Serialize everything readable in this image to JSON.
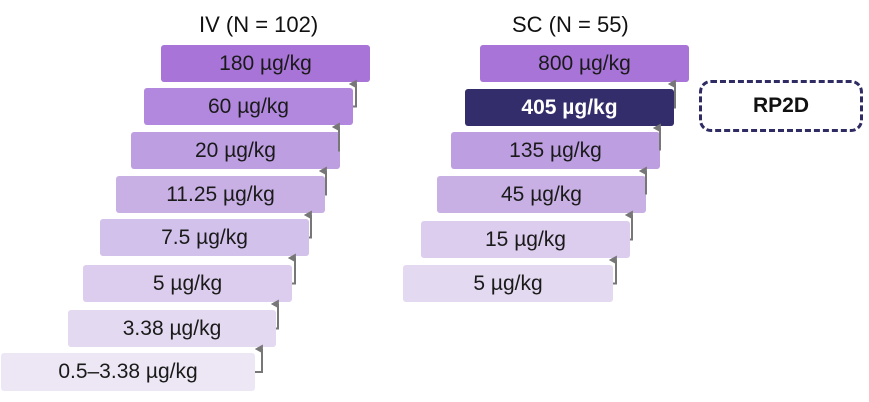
{
  "colors": {
    "shade_1": "#ede7f5",
    "shade_2": "#e3d9f0",
    "shade_3": "#dccdef",
    "shade_4": "#d2c1ea",
    "shade_5": "#c8b0e5",
    "shade_6": "#bd9ee1",
    "shade_7": "#b188dd",
    "shade_8": "#a874d7",
    "selected": "#332e6b",
    "arrow": "#777777",
    "rp2d_border": "#2f2b63"
  },
  "iv": {
    "title": "IV (N = 102)",
    "doses": [
      "0.5–3.38 µg/kg",
      "3.38 µg/kg",
      "5 µg/kg",
      "7.5 µg/kg",
      "11.25 µg/kg",
      "20 µg/kg",
      "60 µg/kg",
      "180 µg/kg"
    ]
  },
  "sc": {
    "title": "SC (N = 55)",
    "doses": [
      "5 µg/kg",
      "15 µg/kg",
      "45 µg/kg",
      "135 µg/kg",
      "405 µg/kg",
      "800 µg/kg"
    ],
    "rp2d_dose": "405 µg/kg"
  },
  "rp2d_label": "RP2D"
}
